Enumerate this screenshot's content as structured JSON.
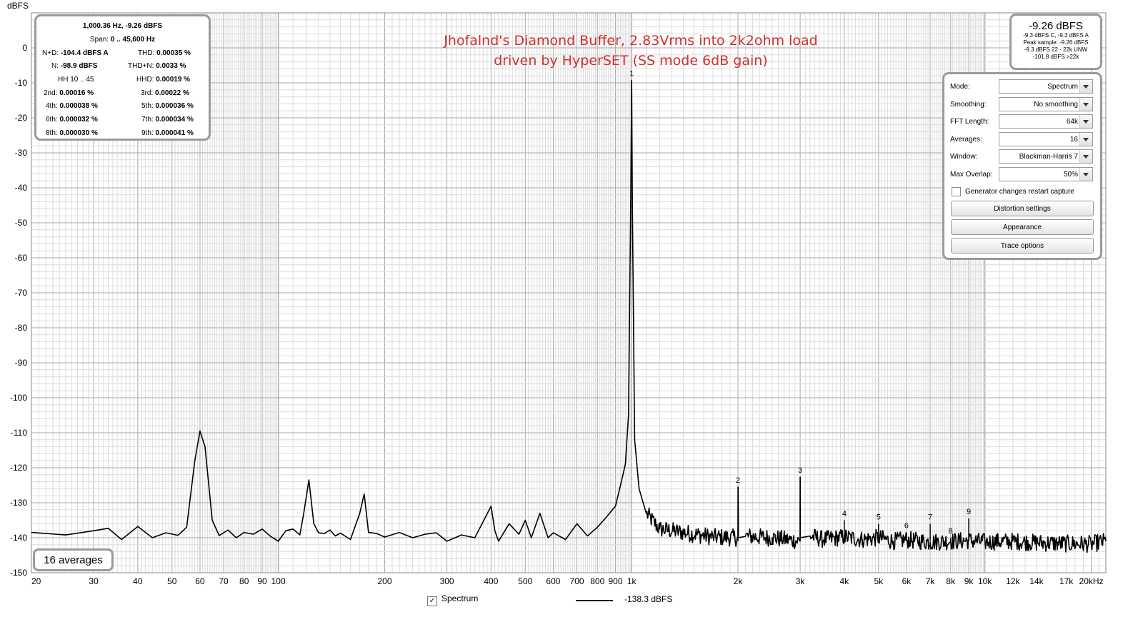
{
  "chart_data": {
    "type": "line",
    "title_lines": [
      "Jhofalnd's Diamond Buffer, 2.83Vrms into 2k2ohm load",
      "driven by HyperSET (SS mode 6dB gain)"
    ],
    "ylabel": "dBFS",
    "xlabel": "",
    "x_scale": "log",
    "xlim": [
      20,
      22000
    ],
    "ylim": [
      -150,
      10
    ],
    "grid": true,
    "y_ticks": [
      "0",
      "-10",
      "-20",
      "-30",
      "-40",
      "-50",
      "-60",
      "-70",
      "-80",
      "-90",
      "-100",
      "-110",
      "-120",
      "-130",
      "-140",
      "-150"
    ],
    "x_tick_labels": [
      {
        "f": 20,
        "label": "20"
      },
      {
        "f": 30,
        "label": "30"
      },
      {
        "f": 40,
        "label": "40"
      },
      {
        "f": 50,
        "label": "50"
      },
      {
        "f": 60,
        "label": "60"
      },
      {
        "f": 70,
        "label": "70"
      },
      {
        "f": 80,
        "label": "80"
      },
      {
        "f": 90,
        "label": "90"
      },
      {
        "f": 100,
        "label": "100"
      },
      {
        "f": 200,
        "label": "200"
      },
      {
        "f": 300,
        "label": "300"
      },
      {
        "f": 400,
        "label": "400"
      },
      {
        "f": 500,
        "label": "500"
      },
      {
        "f": 600,
        "label": "600"
      },
      {
        "f": 700,
        "label": "700"
      },
      {
        "f": 800,
        "label": "800"
      },
      {
        "f": 900,
        "label": "900"
      },
      {
        "f": 1000,
        "label": "1k"
      },
      {
        "f": 2000,
        "label": "2k"
      },
      {
        "f": 3000,
        "label": "3k"
      },
      {
        "f": 4000,
        "label": "4k"
      },
      {
        "f": 5000,
        "label": "5k"
      },
      {
        "f": 6000,
        "label": "6k"
      },
      {
        "f": 7000,
        "label": "7k"
      },
      {
        "f": 8000,
        "label": "8k"
      },
      {
        "f": 9000,
        "label": "9k"
      },
      {
        "f": 10000,
        "label": "10k"
      },
      {
        "f": 12000,
        "label": "12k"
      },
      {
        "f": 14000,
        "label": "14k"
      },
      {
        "f": 17000,
        "label": "17k"
      },
      {
        "f": 20000,
        "label": "20kHz"
      }
    ],
    "series": [
      {
        "name": "Spectrum",
        "x": [
          20,
          25,
          30,
          33,
          36,
          40,
          44,
          48,
          52,
          55,
          58,
          60,
          62,
          65,
          68,
          72,
          76,
          80,
          85,
          90,
          95,
          100,
          105,
          110,
          115,
          118,
          122,
          126,
          130,
          135,
          140,
          145,
          150,
          160,
          170,
          175,
          180,
          190,
          200,
          220,
          240,
          260,
          280,
          300,
          330,
          360,
          400,
          410,
          420,
          450,
          480,
          500,
          520,
          550,
          580,
          600,
          650,
          700,
          750,
          800,
          850,
          900,
          930,
          960,
          980,
          995,
          1000,
          1005,
          1020,
          1050,
          1100,
          1200,
          1400,
          1700,
          2000,
          2003,
          2006,
          2100,
          2500,
          2997,
          3000,
          3003,
          3200,
          3500,
          4000,
          4500,
          5000,
          5500,
          6000,
          7000,
          8000,
          9000,
          10000,
          12000,
          14000,
          17000,
          20000,
          22000
        ],
        "y": [
          -138.5,
          -139.2,
          -138,
          -137.3,
          -140.5,
          -136.8,
          -140,
          -138.6,
          -139.3,
          -137,
          -118,
          -109.5,
          -114,
          -135,
          -139.4,
          -137.8,
          -140,
          -138.5,
          -139,
          -137.5,
          -139.6,
          -141,
          -138,
          -137.5,
          -139.2,
          -133,
          -123.5,
          -136,
          -138.6,
          -138.8,
          -137.8,
          -139.5,
          -138.7,
          -140.5,
          -133,
          -127.5,
          -138.5,
          -138.8,
          -139.8,
          -138.5,
          -140,
          -139,
          -138.6,
          -141,
          -139.2,
          -140,
          -131,
          -138,
          -141,
          -136,
          -139,
          -135,
          -140,
          -133,
          -140,
          -138.6,
          -140.5,
          -136,
          -139.5,
          -137,
          -134,
          -131,
          -125,
          -119,
          -105,
          -40,
          -9.26,
          -45,
          -112,
          -126,
          -133,
          -137.5,
          -138.5,
          -139.8,
          -140,
          -125.5,
          -140,
          -139.6,
          -140,
          -141,
          -122.7,
          -140,
          -139.5,
          -140.5,
          -139.8,
          -140.5,
          -140,
          -141,
          -140.6,
          -141.2,
          -141,
          -140.8,
          -141.2,
          -141,
          -141.4,
          -141.7,
          -141.8,
          -141
        ]
      }
    ],
    "harmonics": [
      {
        "label": "1",
        "f": 1000,
        "y": -9.3
      },
      {
        "label": "2",
        "f": 2000,
        "y": -125.5
      },
      {
        "label": "3",
        "f": 3000,
        "y": -122.7
      },
      {
        "label": "4",
        "f": 4000,
        "y": -135
      },
      {
        "label": "5",
        "f": 5000,
        "y": -136
      },
      {
        "label": "6",
        "f": 6000,
        "y": -138.5
      },
      {
        "label": "7",
        "f": 7000,
        "y": -136
      },
      {
        "label": "8",
        "f": 8000,
        "y": -140
      },
      {
        "label": "9",
        "f": 9000,
        "y": -134.5
      }
    ]
  },
  "distortion_panel": {
    "header": "1,000.36 Hz, -9.26 dBFS",
    "span_label": "Span:",
    "span_value": "0 .. 45,600 Hz",
    "nd_label": "N+D:",
    "nd_value": "-104.4 dBFS A",
    "thd_label": "THD:",
    "thd_value": "0.00035 %",
    "n_label": "N:",
    "n_value": "-98.9 dBFS",
    "thdn_label": "THD+N:",
    "thdn_value": "0.0033 %",
    "hh_label": "HH 10 .. 45",
    "hhd_label": "HHD:",
    "hhd_value": "0.00019 %",
    "h2_label": "2nd:",
    "h2_value": "0.00016 %",
    "h3_label": "3rd:",
    "h3_value": "0.00022 %",
    "h4_label": "4th:",
    "h4_value": "0.000038 %",
    "h5_label": "5th:",
    "h5_value": "0.000036 %",
    "h6_label": "6th:",
    "h6_value": "0.000032 %",
    "h7_label": "7th:",
    "h7_value": "0.000034 %",
    "h8_label": "8th:",
    "h8_value": "0.000030 %",
    "h9_label": "9th:",
    "h9_value": "0.000041 %"
  },
  "level_panel": {
    "main": "-9.26 dBFS",
    "line1": "-9.3 dBFS C, -9.3 dBFS A",
    "line2": "Peak sample: -9.26 dBFS",
    "line3": "-9.3 dBFS 22 - 22k UNW",
    "line4": "-101.8 dBFS >22k"
  },
  "controls": {
    "mode_label": "Mode:",
    "mode_value": "Spectrum",
    "smoothing_label": "Smoothing:",
    "smoothing_value": "No  smoothing",
    "fft_label": "FFT Length:",
    "fft_value": "64k",
    "averages_label": "Averages:",
    "averages_value": "16",
    "window_label": "Window:",
    "window_value": "Blackman-Harris 7",
    "overlap_label": "Max Overlap:",
    "overlap_value": "50%",
    "generator_label": "Generator changes restart capture",
    "distortion_btn": "Distortion settings",
    "appearance_btn": "Appearance",
    "trace_btn": "Trace options"
  },
  "averages_badge": "16 averages",
  "legend": {
    "series_label": "Spectrum",
    "series_value": "-138.3 dBFS",
    "checkmark": "✓"
  },
  "colors": {
    "trace": "#000000",
    "title": "#d0312d",
    "grid_major": "#a8a8a8",
    "grid_minor": "#dcdcdc",
    "panel_border": "#9a9a9a"
  }
}
